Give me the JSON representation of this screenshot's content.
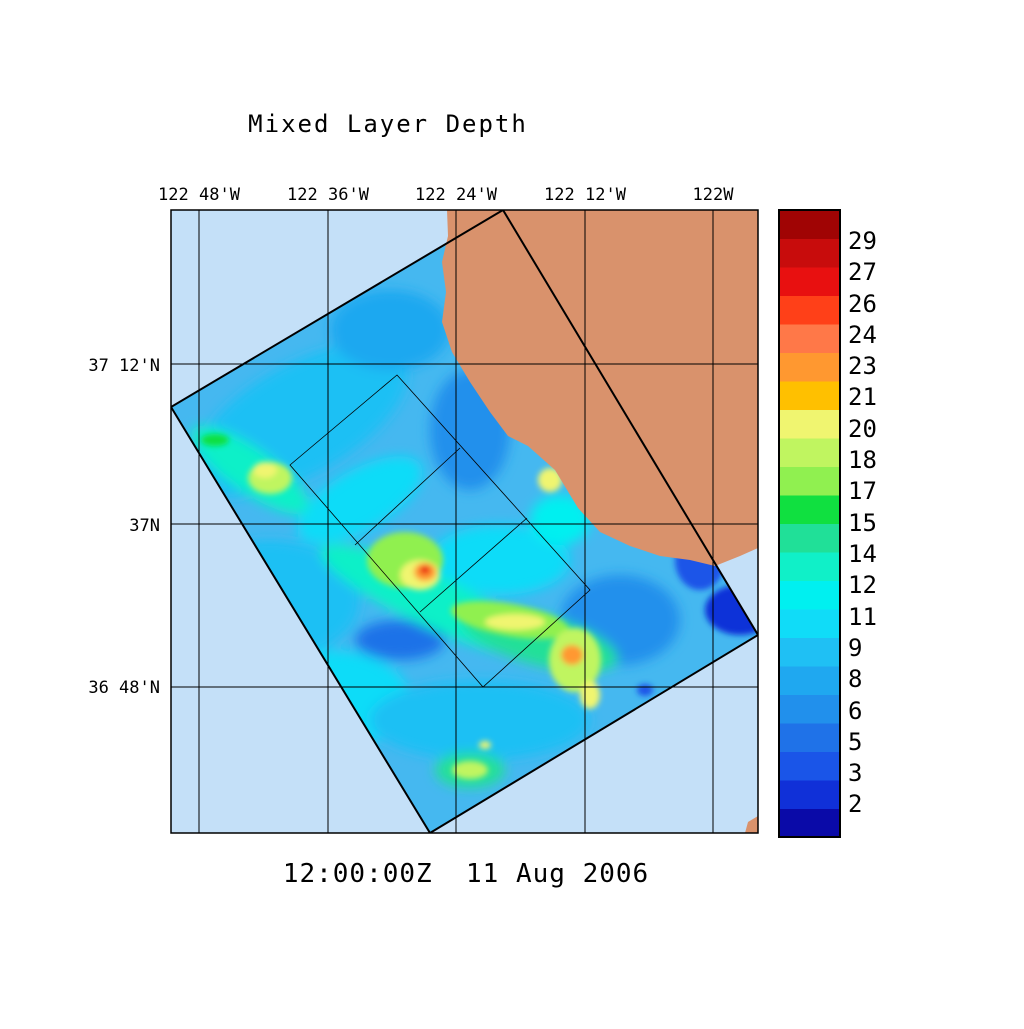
{
  "title": "Mixed Layer Depth",
  "timestamp": "12:00:00Z  11 Aug 2006",
  "lon_labels": [
    "122 48'W",
    "122 36'W",
    "122 24'W",
    "122 12'W",
    "122W"
  ],
  "lat_labels": [
    "37 12'N",
    "37N",
    "36 48'N"
  ],
  "colorbar": {
    "labels": [
      "29",
      "27",
      "26",
      "24",
      "23",
      "21",
      "20",
      "18",
      "17",
      "15",
      "14",
      "12",
      "11",
      "9",
      "8",
      "6",
      "5",
      "3",
      "2"
    ],
    "colors": [
      "#0a0aa8",
      "#1030d8",
      "#1a55e8",
      "#1f72e8",
      "#2190ec",
      "#1fa8f0",
      "#1fc0f4",
      "#10dcf8",
      "#00f0f0",
      "#10f0c8",
      "#20e098",
      "#10e040",
      "#90f050",
      "#c0f560",
      "#f0f570",
      "#ffc000",
      "#ff9830",
      "#ff7848",
      "#ff4018",
      "#e81010",
      "#c80c0c",
      "#a00404"
    ]
  },
  "colors": {
    "ocean_outside": "#c4e0f8",
    "land": "#d9926c",
    "domain_base": "#45b8f0"
  }
}
